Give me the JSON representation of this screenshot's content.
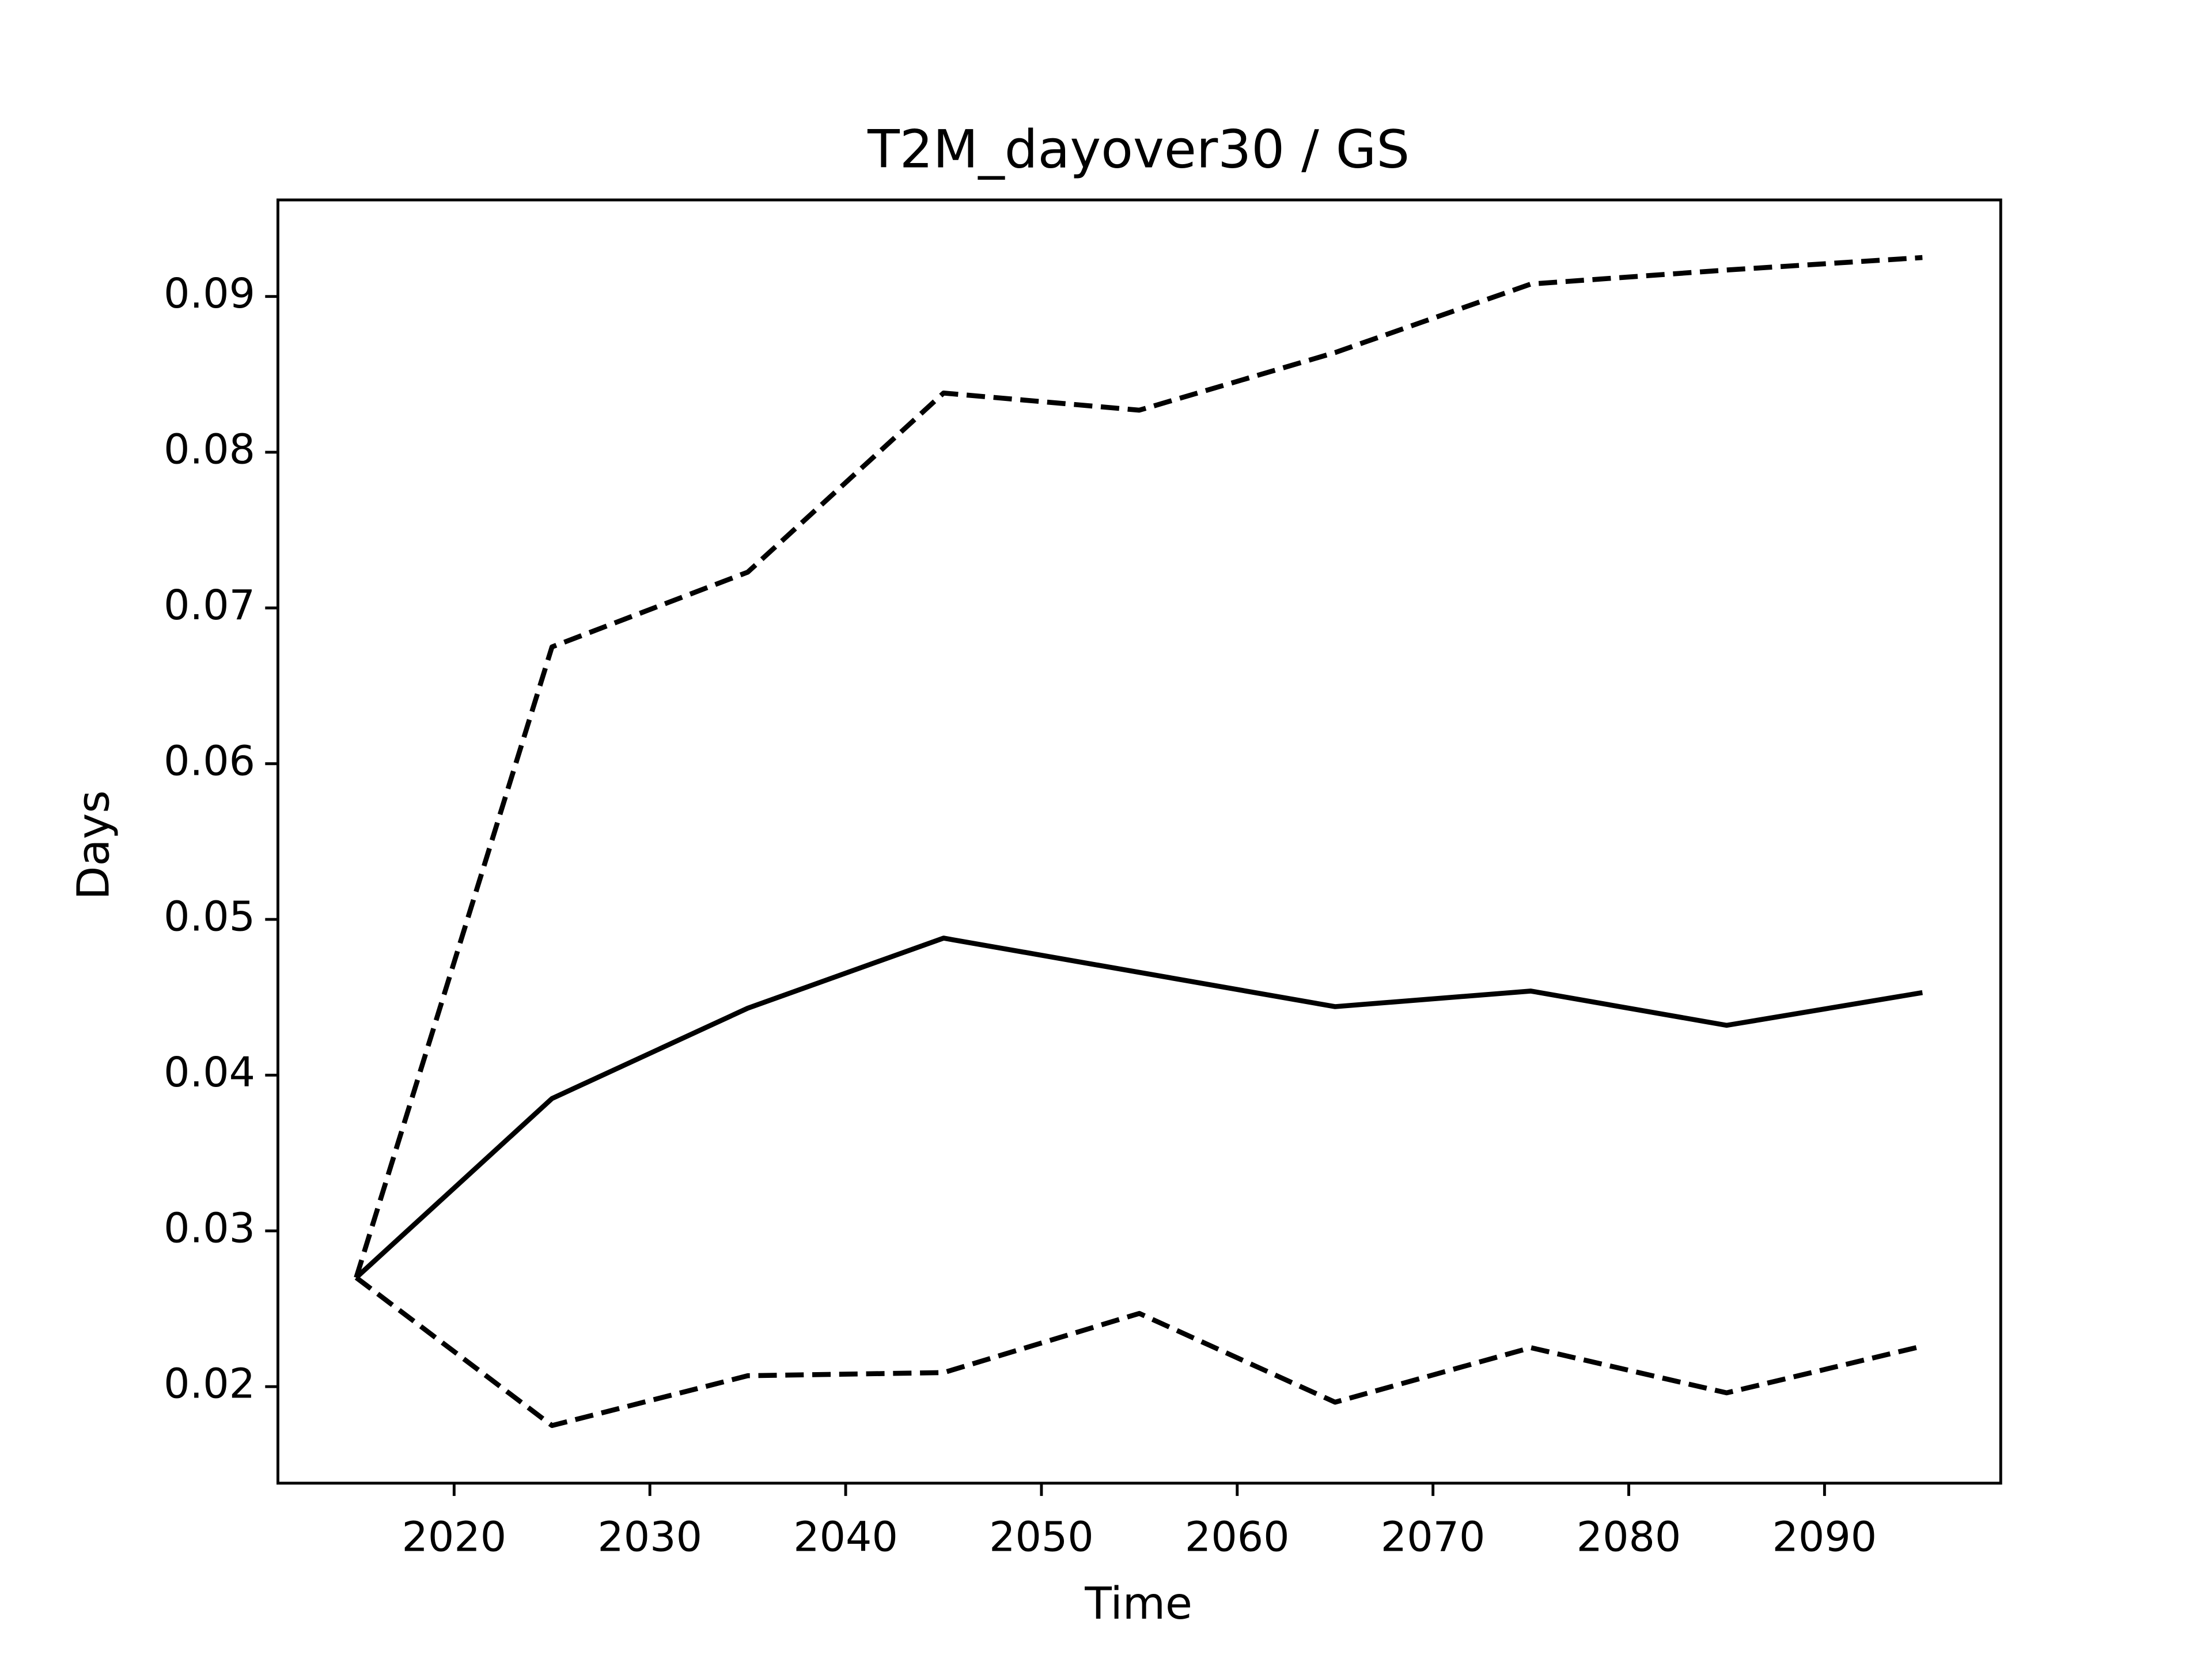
{
  "chart_data": {
    "type": "line",
    "title": "T2M_dayover30 / GS",
    "xlabel": "Time",
    "ylabel": "Days",
    "x": [
      2015,
      2025,
      2035,
      2045,
      2055,
      2065,
      2075,
      2085,
      2095
    ],
    "series": [
      {
        "color": "#000000",
        "linestyle": "solid",
        "values": [
          0.027,
          0.0385,
          0.0443,
          0.0488,
          0.0466,
          0.0444,
          0.0454,
          0.0432,
          0.0453
        ]
      },
      {
        "color": "#000000",
        "linestyle": "dashed",
        "values": [
          0.027,
          0.0675,
          0.0723,
          0.0838,
          0.0827,
          0.0864,
          0.0908,
          0.0917,
          0.0925
        ]
      },
      {
        "color": "#000000",
        "linestyle": "dashed",
        "values": [
          0.027,
          0.0175,
          0.0207,
          0.0209,
          0.0247,
          0.019,
          0.0225,
          0.0196,
          0.0226
        ]
      }
    ],
    "xlim": [
      2011,
      2099
    ],
    "ylim": [
      0.0138,
      0.0962
    ],
    "xticks": [
      2020,
      2030,
      2040,
      2050,
      2060,
      2070,
      2080,
      2090
    ],
    "yticks": [
      0.02,
      0.03,
      0.04,
      0.05,
      0.06,
      0.07,
      0.08,
      0.09
    ],
    "grid": false
  }
}
